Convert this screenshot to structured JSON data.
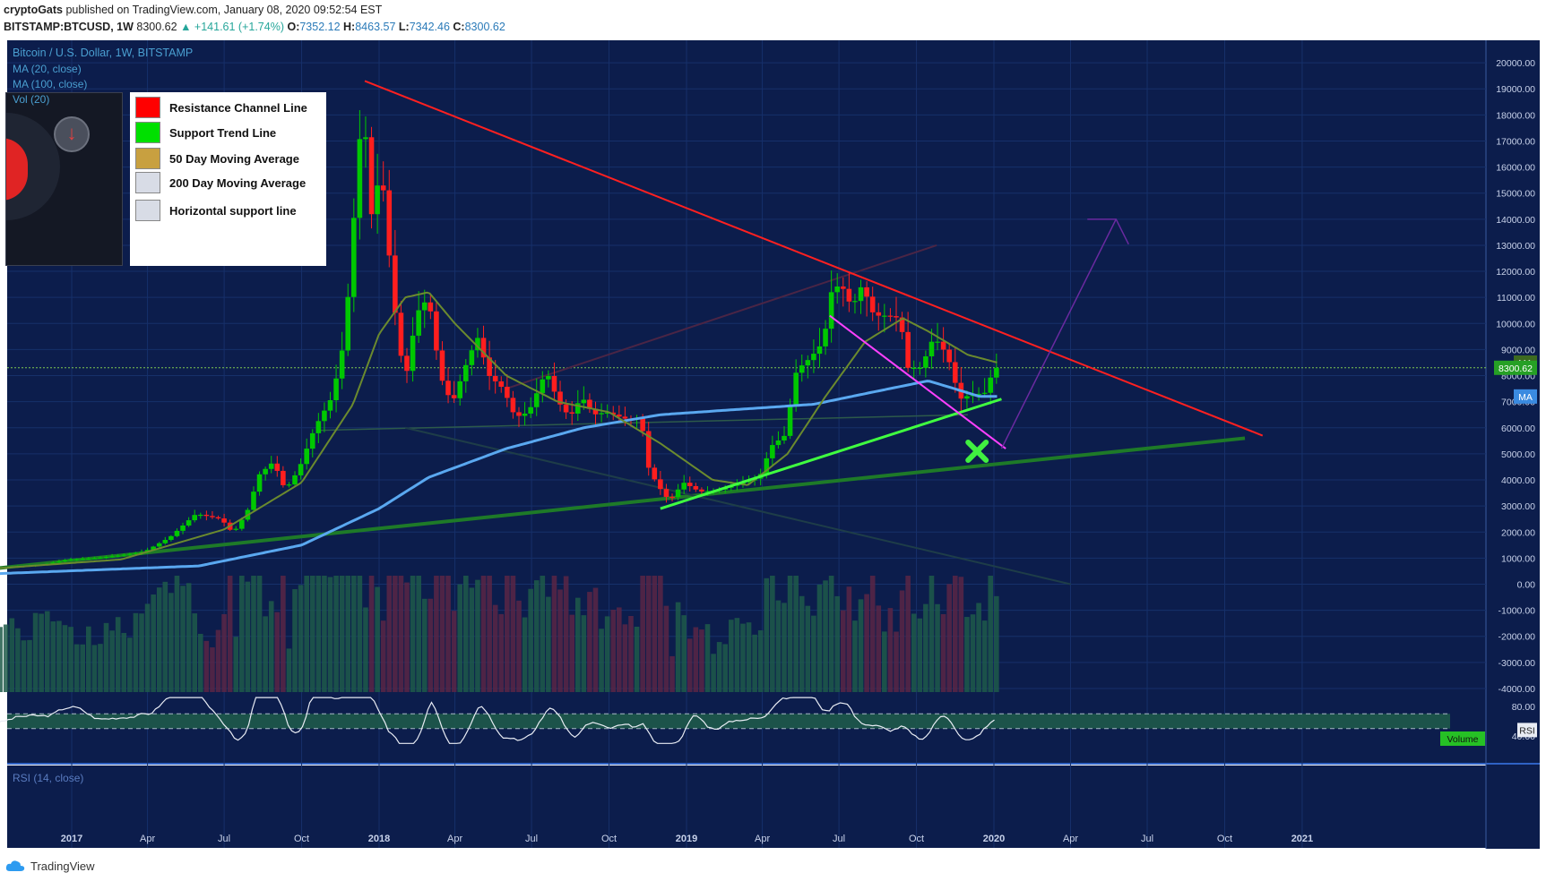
{
  "header": {
    "line1": {
      "author": "cryptoGats",
      "text": " published on TradingView.com, January 08, 2020 09:52:54 EST"
    },
    "line2": {
      "symbol": "BITSTAMP:BTCUSD, 1W",
      "price": "8300.62",
      "change": "▲ +141.61 (+1.74%)",
      "o_label": "O:",
      "o": "7352.12",
      "h_label": "H:",
      "h": "8463.57",
      "l_label": "L:",
      "l": "7342.46",
      "c_label": "C:",
      "c": "8300.62"
    }
  },
  "indicators": {
    "title": "Bitcoin / U.S. Dollar, 1W, BITSTAMP",
    "ma20": "MA (20, close)",
    "ma100": "MA (100, close)",
    "vol": "Vol (20)",
    "rsi": "RSI (14, close)"
  },
  "legend": [
    {
      "label": "Resistance Channel Line",
      "color": "#ff0000"
    },
    {
      "label": "Support Trend Line",
      "color": "#00e000"
    },
    {
      "label": "50 Day Moving Average",
      "color": "#c8a040"
    },
    {
      "label": "200 Day Moving Average",
      "color": "#d8dce6"
    },
    {
      "label": "Horizontal support line",
      "color": "#d8dce6"
    }
  ],
  "badges": {
    "ma_top": "MA",
    "price": "8300.62",
    "ma_bottom": "MA",
    "volume": "Volume",
    "rsi": "RSI"
  },
  "footer": {
    "brand": "TradingView"
  },
  "colors": {
    "background": "#0c1d4c",
    "up": "#00c800",
    "down": "#ff1e1e",
    "ma20": "#6b8a2e",
    "ma100": "#5aa8f0",
    "resistance": "#ff2020",
    "support": "#40ff40",
    "long_support": "#1e7a28",
    "magenta": "#ff40ff",
    "projection": "#6a2aa0"
  },
  "chart_data": {
    "type": "candlestick",
    "yaxis_ticks": [
      "20000.00",
      "19000.00",
      "18000.00",
      "17000.00",
      "16000.00",
      "15000.00",
      "14000.00",
      "13000.00",
      "12000.00",
      "11000.00",
      "10000.00",
      "9000.00",
      "8000.00",
      "7000.00",
      "6000.00",
      "5000.00",
      "4000.00",
      "3000.00",
      "2000.00",
      "1000.00",
      "0.00",
      "-1000.00",
      "-2000.00",
      "-3000.00",
      "-4000.00"
    ],
    "ylim": [
      -4000,
      20000
    ],
    "xaxis_ticks": [
      {
        "label": "2017",
        "date": "2017-01-01",
        "bold": true
      },
      {
        "label": "Apr",
        "date": "2017-04-01"
      },
      {
        "label": "Jul",
        "date": "2017-07-01"
      },
      {
        "label": "Oct",
        "date": "2017-10-01"
      },
      {
        "label": "2018",
        "date": "2018-01-01",
        "bold": true
      },
      {
        "label": "Apr",
        "date": "2018-04-01"
      },
      {
        "label": "Jul",
        "date": "2018-07-01"
      },
      {
        "label": "Oct",
        "date": "2018-10-01"
      },
      {
        "label": "2019",
        "date": "2019-01-01",
        "bold": true
      },
      {
        "label": "Apr",
        "date": "2019-04-01"
      },
      {
        "label": "Jul",
        "date": "2019-07-01"
      },
      {
        "label": "Oct",
        "date": "2019-10-01"
      },
      {
        "label": "2020",
        "date": "2020-01-01",
        "bold": true
      },
      {
        "label": "Apr",
        "date": "2020-04-01"
      },
      {
        "label": "Jul",
        "date": "2020-07-01"
      },
      {
        "label": "Oct",
        "date": "2020-10-01"
      },
      {
        "label": "2021",
        "date": "2021-01-01",
        "bold": true
      }
    ],
    "current_price": 8300.62,
    "close_path": [
      [
        "2016-10-01",
        610
      ],
      [
        "2016-12-01",
        750
      ],
      [
        "2017-01-01",
        950
      ],
      [
        "2017-02-01",
        1000
      ],
      [
        "2017-03-01",
        1100
      ],
      [
        "2017-04-01",
        1250
      ],
      [
        "2017-05-01",
        1800
      ],
      [
        "2017-06-01",
        2700
      ],
      [
        "2017-07-01",
        2500
      ],
      [
        "2017-07-15",
        1950
      ],
      [
        "2017-08-01",
        2800
      ],
      [
        "2017-08-15",
        4200
      ],
      [
        "2017-09-01",
        4700
      ],
      [
        "2017-09-15",
        3600
      ],
      [
        "2017-10-01",
        4400
      ],
      [
        "2017-10-20",
        6000
      ],
      [
        "2017-11-10",
        7200
      ],
      [
        "2017-11-25",
        9500
      ],
      [
        "2017-12-10",
        16000
      ],
      [
        "2017-12-17",
        19000
      ],
      [
        "2017-12-24",
        13800
      ],
      [
        "2018-01-07",
        16000
      ],
      [
        "2018-01-21",
        11000
      ],
      [
        "2018-02-04",
        7700
      ],
      [
        "2018-02-18",
        10400
      ],
      [
        "2018-03-04",
        11000
      ],
      [
        "2018-03-18",
        8000
      ],
      [
        "2018-04-01",
        6900
      ],
      [
        "2018-04-15",
        8200
      ],
      [
        "2018-05-01",
        9500
      ],
      [
        "2018-05-15",
        8000
      ],
      [
        "2018-06-01",
        7500
      ],
      [
        "2018-06-15",
        6400
      ],
      [
        "2018-07-01",
        6600
      ],
      [
        "2018-07-22",
        8200
      ],
      [
        "2018-08-05",
        7000
      ],
      [
        "2018-08-19",
        6400
      ],
      [
        "2018-09-02",
        7200
      ],
      [
        "2018-09-16",
        6500
      ],
      [
        "2018-10-01",
        6600
      ],
      [
        "2018-10-28",
        6300
      ],
      [
        "2018-11-11",
        6400
      ],
      [
        "2018-11-20",
        4500
      ],
      [
        "2018-12-01",
        3800
      ],
      [
        "2018-12-15",
        3200
      ],
      [
        "2019-01-01",
        3900
      ],
      [
        "2019-01-20",
        3550
      ],
      [
        "2019-02-10",
        3600
      ],
      [
        "2019-03-01",
        3800
      ],
      [
        "2019-04-01",
        4100
      ],
      [
        "2019-04-15",
        5300
      ],
      [
        "2019-05-01",
        5700
      ],
      [
        "2019-05-15",
        8200
      ],
      [
        "2019-06-01",
        8700
      ],
      [
        "2019-06-16",
        9300
      ],
      [
        "2019-06-26",
        11300
      ],
      [
        "2019-07-07",
        11500
      ],
      [
        "2019-07-20",
        10600
      ],
      [
        "2019-08-01",
        11500
      ],
      [
        "2019-08-15",
        10300
      ],
      [
        "2019-09-01",
        10300
      ],
      [
        "2019-09-15",
        10200
      ],
      [
        "2019-09-24",
        8300
      ],
      [
        "2019-10-10",
        8300
      ],
      [
        "2019-10-25",
        9500
      ],
      [
        "2019-11-10",
        8800
      ],
      [
        "2019-11-25",
        7100
      ],
      [
        "2019-12-10",
        7300
      ],
      [
        "2019-12-24",
        7300
      ],
      [
        "2020-01-05",
        8300.62
      ]
    ],
    "ma20_path": [
      [
        "2016-10-01",
        600
      ],
      [
        "2017-03-01",
        950
      ],
      [
        "2017-07-01",
        2100
      ],
      [
        "2017-10-01",
        3900
      ],
      [
        "2017-12-01",
        6900
      ],
      [
        "2018-01-01",
        9600
      ],
      [
        "2018-02-01",
        11000
      ],
      [
        "2018-03-01",
        11200
      ],
      [
        "2018-04-01",
        10000
      ],
      [
        "2018-06-01",
        8000
      ],
      [
        "2018-08-01",
        7000
      ],
      [
        "2018-10-01",
        6600
      ],
      [
        "2018-12-01",
        5400
      ],
      [
        "2019-02-01",
        4000
      ],
      [
        "2019-03-15",
        3800
      ],
      [
        "2019-05-01",
        5000
      ],
      [
        "2019-06-15",
        7200
      ],
      [
        "2019-08-01",
        9300
      ],
      [
        "2019-09-15",
        10200
      ],
      [
        "2019-10-15",
        9700
      ],
      [
        "2019-12-01",
        8800
      ],
      [
        "2020-01-05",
        8500
      ]
    ],
    "ma100_path": [
      [
        "2016-10-01",
        400
      ],
      [
        "2017-06-01",
        700
      ],
      [
        "2017-10-01",
        1500
      ],
      [
        "2018-01-01",
        2900
      ],
      [
        "2018-03-01",
        4100
      ],
      [
        "2018-06-01",
        5200
      ],
      [
        "2018-09-01",
        6000
      ],
      [
        "2018-12-01",
        6500
      ],
      [
        "2019-03-01",
        6700
      ],
      [
        "2019-06-01",
        6900
      ],
      [
        "2019-08-15",
        7400
      ],
      [
        "2019-10-15",
        7800
      ],
      [
        "2019-11-15",
        7500
      ],
      [
        "2019-12-15",
        7200
      ],
      [
        "2020-01-05",
        7200
      ]
    ],
    "trendlines": [
      {
        "name": "resistance-channel-line",
        "from": [
          "2017-12-15",
          19300
        ],
        "to": [
          "2020-11-15",
          5700
        ]
      },
      {
        "name": "long-support-line",
        "from": [
          "2016-10-01",
          600
        ],
        "to": [
          "2020-10-25",
          5600
        ]
      },
      {
        "name": "support-trend-line",
        "from": [
          "2018-12-01",
          2900
        ],
        "to": [
          "2020-01-10",
          7100
        ]
      },
      {
        "name": "horizontal-support-line",
        "from": [
          "2017-10-20",
          5900
        ],
        "to": [
          "2019-12-01",
          6500
        ]
      },
      {
        "name": "magenta-down-line",
        "from": [
          "2019-06-20",
          10300
        ],
        "to": [
          "2020-01-15",
          5200
        ]
      },
      {
        "name": "dark-channel-upper",
        "from": [
          "2018-06-01",
          7500
        ],
        "to": [
          "2019-10-25",
          13000
        ]
      },
      {
        "name": "dark-channel-lower",
        "from": [
          "2018-02-01",
          6000
        ],
        "to": [
          "2020-04-01",
          0
        ]
      },
      {
        "name": "projection-up",
        "from": [
          "2020-01-10",
          5200
        ],
        "to": [
          "2020-05-25",
          14000
        ]
      }
    ],
    "rsi": {
      "ylim": [
        20,
        100
      ],
      "ticks": [
        "80.00",
        "40.00"
      ],
      "upper": 70,
      "lower": 50
    }
  }
}
